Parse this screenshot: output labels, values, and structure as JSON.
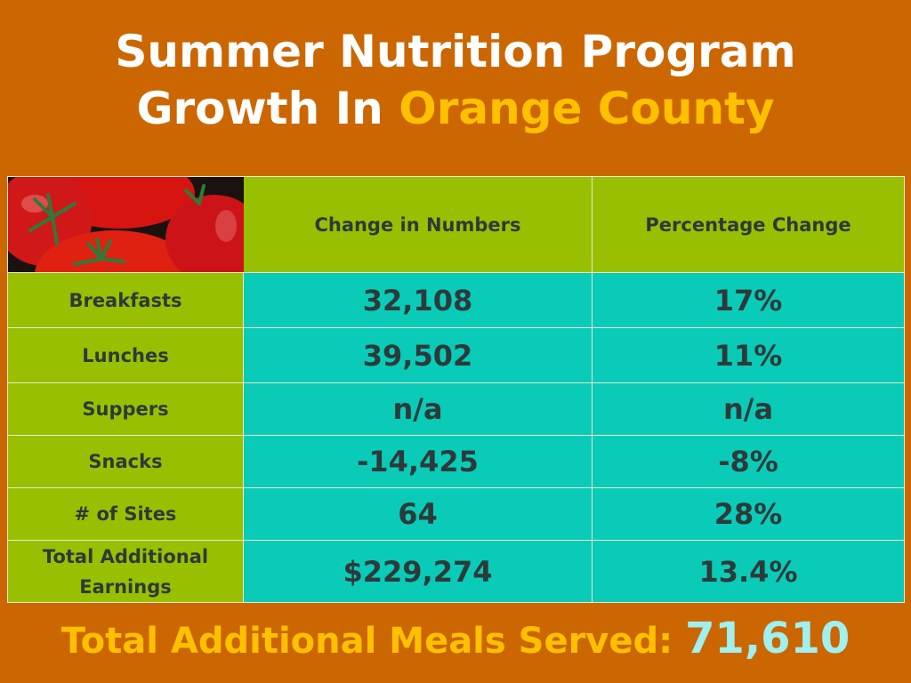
{
  "title": {
    "line1": "Summer Nutrition Program",
    "line2_prefix": "Growth In ",
    "line2_highlight": "Orange County"
  },
  "image": {
    "icon": "tomatoes-photo"
  },
  "table": {
    "headers": [
      "Change in Numbers",
      "Percentage Change"
    ],
    "rows": [
      {
        "label": "Breakfasts",
        "number": "32,108",
        "percent": "17%"
      },
      {
        "label": "Lunches",
        "number": "39,502",
        "percent": "11%"
      },
      {
        "label": "Suppers",
        "number": "n/a",
        "percent": "n/a"
      },
      {
        "label": "Snacks",
        "number": "-14,425",
        "percent": "-8%"
      },
      {
        "label": "# of Sites",
        "number": "64",
        "percent": "28%"
      },
      {
        "label": "Total Additional Earnings",
        "number": "$229,274",
        "percent": "13.4%"
      }
    ]
  },
  "footer": {
    "label": "Total Additional Meals Served: ",
    "value": "71,610"
  },
  "colors": {
    "background": "#cc6600",
    "highlight": "#ffc000",
    "green": "#99c000",
    "teal": "#0acbb8",
    "value": "#a0f0f0"
  }
}
